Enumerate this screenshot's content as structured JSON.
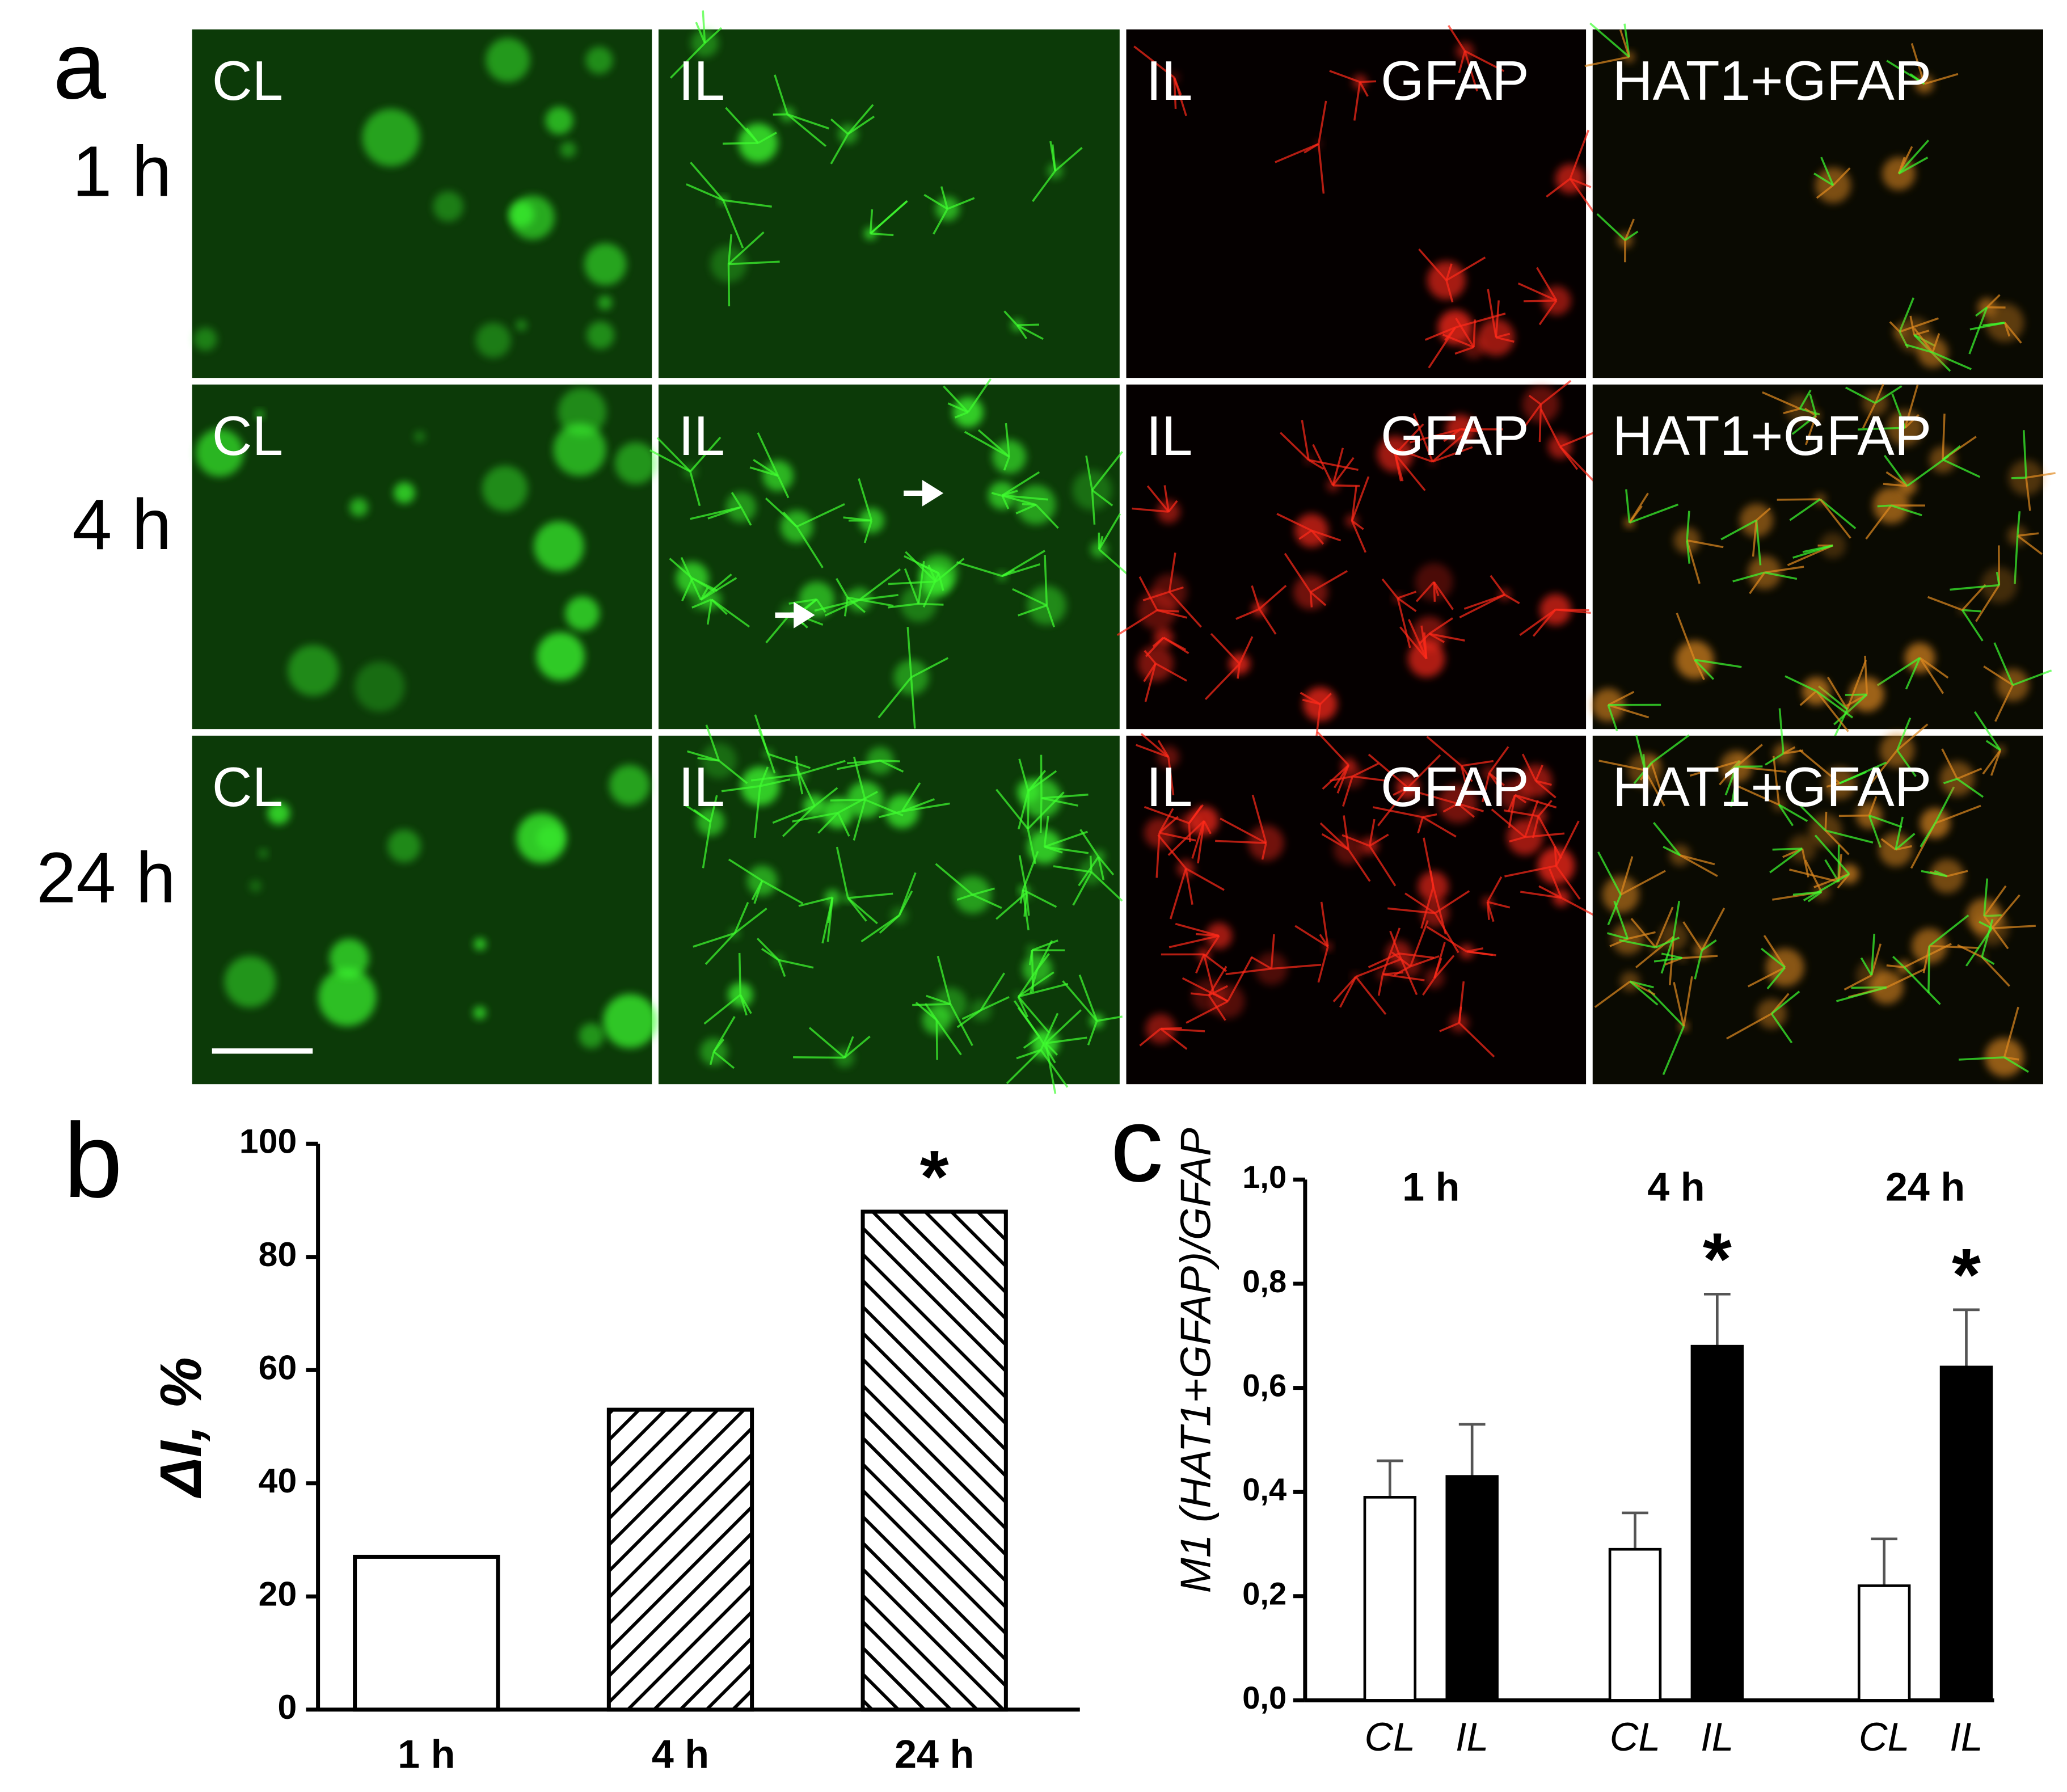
{
  "micrographs": {
    "panel_label": "a",
    "rows": [
      {
        "label": "1 h",
        "cells": [
          [
            "CL"
          ],
          [
            "IL"
          ],
          [
            "IL",
            "GFAP"
          ],
          [
            "HAT1+GFAP"
          ]
        ]
      },
      {
        "label": "4 h",
        "cells": [
          [
            "CL"
          ],
          [
            "IL"
          ],
          [
            "IL",
            "GFAP"
          ],
          [
            "HAT1+GFAP"
          ]
        ]
      },
      {
        "label": "24 h",
        "cells": [
          [
            "CL"
          ],
          [
            "IL"
          ],
          [
            "IL",
            "GFAP"
          ],
          [
            "HAT1+GFAP"
          ]
        ]
      }
    ]
  },
  "chart_data": [
    {
      "type": "bar",
      "panel_label": "b",
      "y_label": "ΔI, %",
      "categories": [
        "1 h",
        "4 h",
        "24 h"
      ],
      "values": [
        27,
        53,
        88
      ],
      "patterns": [
        "none",
        "forward",
        "backward"
      ],
      "color": "#000000",
      "ylim": [
        0,
        100
      ],
      "yticks": [
        0,
        20,
        40,
        60,
        80,
        100
      ],
      "annotations": [
        {
          "text": "*",
          "index": 2
        }
      ]
    },
    {
      "type": "grouped_bar",
      "panel_label": "c",
      "y_label": "M1 (HAT1+GFAP)/GFAP",
      "categories": [
        "1 h",
        "4 h",
        "24 h"
      ],
      "series": [
        {
          "name": "CL",
          "color": "#ffffff",
          "values": [
            0.39,
            0.29,
            0.22
          ],
          "errors": [
            0.07,
            0.07,
            0.09
          ]
        },
        {
          "name": "IL",
          "color": "#000000",
          "values": [
            0.43,
            0.68,
            0.64
          ],
          "errors": [
            0.1,
            0.1,
            0.11
          ]
        }
      ],
      "ylim": [
        0,
        1.0
      ],
      "yticks": [
        {
          "value": 0,
          "label": "0,0"
        },
        {
          "value": 0.2,
          "label": "0,2"
        },
        {
          "value": 0.4,
          "label": "0,4"
        },
        {
          "value": 0.6,
          "label": "0,6"
        },
        {
          "value": 0.8,
          "label": "0,8"
        },
        {
          "value": 1.0,
          "label": "1,0"
        }
      ],
      "annotations": [
        {
          "text": "*",
          "series": 1,
          "index": 1
        },
        {
          "text": "*",
          "series": 1,
          "index": 2
        }
      ]
    }
  ]
}
